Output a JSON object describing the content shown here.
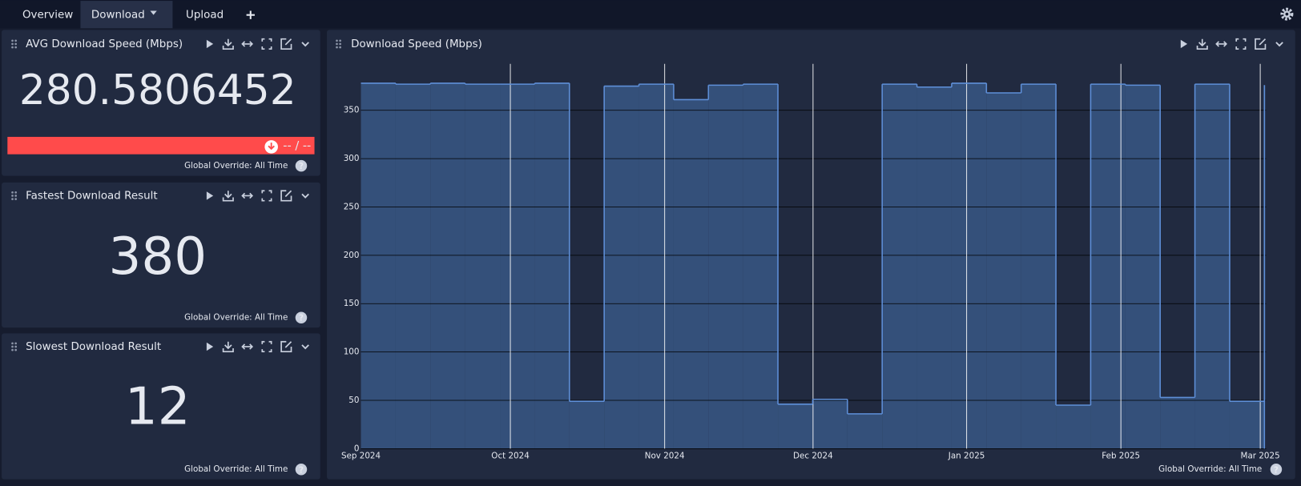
{
  "tabs": [
    "Overview",
    "Download",
    "Upload"
  ],
  "help_label": "?",
  "footer": "Global Override: All Time",
  "stat_panels": [
    {
      "title": "AVG Download Speed (Mbps)",
      "value": 280.5806452,
      "threshold_label": "-- / --"
    },
    {
      "title": "Fastest Download Result",
      "value": 380
    },
    {
      "title": "Slowest Download Result",
      "value": 12
    }
  ],
  "chart_data": {
    "type": "step",
    "title": "Download Speed (Mbps)",
    "x": [
      0,
      1,
      2,
      3,
      4,
      5,
      6,
      7,
      8,
      9,
      10,
      11,
      12,
      13,
      14,
      15,
      16,
      17,
      18,
      19,
      20,
      21,
      22,
      23,
      24,
      25,
      26
    ],
    "values": [
      378,
      377,
      378,
      377,
      377,
      378,
      49,
      375,
      377,
      361,
      376,
      377,
      46,
      51,
      36,
      377,
      374,
      378,
      368,
      377,
      45,
      377,
      376,
      53,
      377,
      49,
      376
    ],
    "color": "#34507a",
    "line_color": "#5e8fd8",
    "xlim": [
      0,
      26.05
    ],
    "xticks": [
      {
        "value": 0,
        "label": "Sep 2024"
      },
      {
        "value": 4.3,
        "label": "Oct 2024"
      },
      {
        "value": 8.74,
        "label": "Nov 2024"
      },
      {
        "value": 13.01,
        "label": "Dec 2024"
      },
      {
        "value": 17.43,
        "label": "Jan 2025"
      },
      {
        "value": 21.87,
        "label": "Feb 2025"
      },
      {
        "value": 25.88,
        "label": "Mar 2025"
      }
    ],
    "ylim": [
      0,
      398
    ],
    "yticks": [
      0,
      50,
      100,
      150,
      200,
      250,
      300,
      350
    ],
    "grid": true
  }
}
